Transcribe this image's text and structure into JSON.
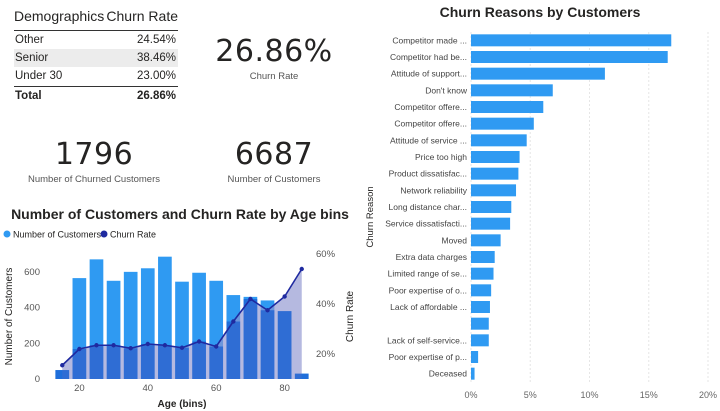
{
  "demographics_table": {
    "headers": [
      "Demographics",
      "Churn Rate"
    ],
    "rows": [
      {
        "label": "Other",
        "value": "24.54%"
      },
      {
        "label": "Senior",
        "value": "38.46%"
      },
      {
        "label": "Under 30",
        "value": "23.00%"
      }
    ],
    "total": {
      "label": "Total",
      "value": "26.86%"
    }
  },
  "kpis": {
    "churn_rate": {
      "value": "26.86%",
      "label": "Churn Rate"
    },
    "churned_customers": {
      "value": "1796",
      "label": "Number of Churned Customers"
    },
    "customers": {
      "value": "6687",
      "label": "Number of Customers"
    }
  },
  "colors": {
    "bar_light": "#2f9af2",
    "bar_dark": "#1b5fd1",
    "line": "#1f2aa0",
    "area": "#8d93cf"
  },
  "chart_data": [
    {
      "type": "bar",
      "title": "Number of Customers and Churn Rate by Age bins",
      "xlabel": "Age (bins)",
      "ylabel": "Number of Customers",
      "y2label": "Churn Rate",
      "legend": [
        "Number of Customers",
        "Churn Rate"
      ],
      "legend_position": "top-left",
      "x": [
        15,
        20,
        25,
        30,
        35,
        40,
        45,
        50,
        55,
        60,
        65,
        70,
        75,
        80,
        85
      ],
      "xlim": [
        12,
        88
      ],
      "xticks": [
        20,
        40,
        60,
        80
      ],
      "ylim": [
        0,
        700
      ],
      "yticks": [
        0,
        200,
        400,
        600
      ],
      "y2lim": [
        10,
        60
      ],
      "y2ticks": [
        "20%",
        "40%",
        "60%"
      ],
      "y2tick_values": [
        20,
        40,
        60
      ],
      "series": [
        {
          "name": "Number of Customers",
          "values": [
            50,
            565,
            670,
            550,
            600,
            620,
            685,
            545,
            595,
            550,
            470,
            460,
            440,
            380,
            30
          ]
        },
        {
          "name": "Churn Rate",
          "values": [
            15.5,
            22,
            23.5,
            23.5,
            22.3,
            24,
            23.5,
            22.5,
            25,
            23,
            33,
            42,
            37.5,
            43,
            54
          ]
        }
      ]
    },
    {
      "type": "bar",
      "title": "Churn Reasons by Customers",
      "ylabel": "Churn Reason",
      "orientation": "horizontal",
      "xlim": [
        0,
        20
      ],
      "xticks": [
        "0%",
        "5%",
        "10%",
        "15%",
        "20%"
      ],
      "xtick_values": [
        0,
        5,
        10,
        15,
        20
      ],
      "grid": true,
      "categories": [
        "Competitor made ...",
        "Competitor had be...",
        "Attitude of support...",
        "Don't know",
        "Competitor offere...",
        "Competitor offere...",
        "Attitude of service ...",
        "Price too high",
        "Product dissatisfac...",
        "Network reliability",
        "Long distance char...",
        "Service dissatisfacti...",
        "Moved",
        "Extra data charges",
        "Limited range of se...",
        "Poor expertise of o...",
        "Lack of affordable ...",
        "",
        "Lack of self-service...",
        "Poor expertise of p...",
        "Deceased"
      ],
      "values": [
        16.9,
        16.6,
        11.3,
        6.9,
        6.1,
        5.3,
        4.7,
        4.1,
        4.0,
        3.8,
        3.4,
        3.3,
        2.5,
        2.0,
        1.9,
        1.7,
        1.6,
        1.5,
        1.5,
        0.6,
        0.3
      ]
    }
  ]
}
